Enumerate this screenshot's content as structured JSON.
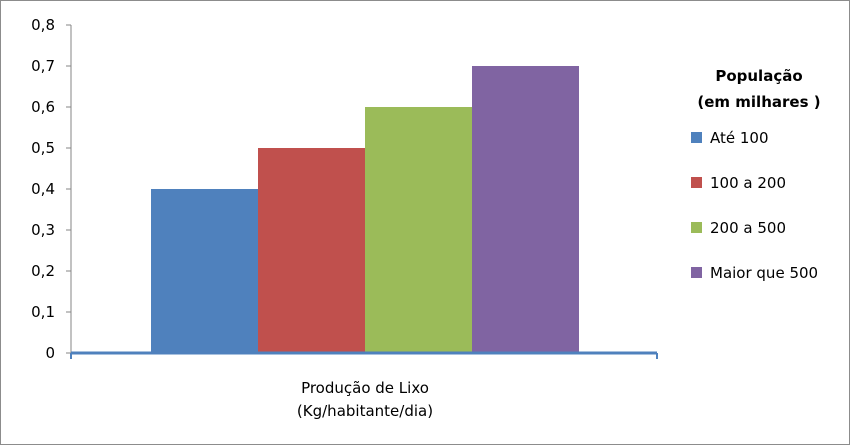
{
  "chart_data": {
    "type": "bar",
    "categories": [
      "Produção de Lixo (Kg/habitante/dia)"
    ],
    "xlabel_lines": [
      "Produção de Lixo",
      "(Kg/habitante/dia)"
    ],
    "ylim": [
      0,
      0.8
    ],
    "y_ticks": [
      0,
      0.1,
      0.2,
      0.3,
      0.4,
      0.5,
      0.6,
      0.7,
      0.8
    ],
    "y_tick_labels": [
      "0",
      "0,1",
      "0,2",
      "0,3",
      "0,4",
      "0,5",
      "0,6",
      "0,7",
      "0,8"
    ],
    "grid": false,
    "legend": {
      "placement": "right",
      "title_lines": [
        "População",
        "(em milhares )"
      ]
    },
    "series": [
      {
        "name": "Até 100",
        "values": [
          0.4
        ],
        "color": "#4f81bd"
      },
      {
        "name": "100 a 200",
        "values": [
          0.5
        ],
        "color": "#c0504d"
      },
      {
        "name": "200 a 500",
        "values": [
          0.6
        ],
        "color": "#9bbb59"
      },
      {
        "name": "Maior que 500",
        "values": [
          0.7
        ],
        "color": "#8064a2"
      }
    ],
    "axis_color": "#4f81bd"
  }
}
